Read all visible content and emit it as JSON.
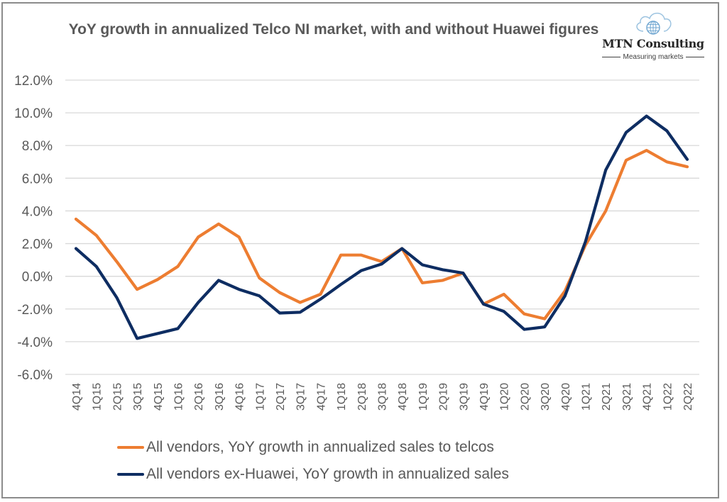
{
  "logo": {
    "name": "MTN Consulting",
    "tagline": "Measuring markets",
    "icon": "cloud-globe-icon"
  },
  "chart_data": {
    "type": "line",
    "title": "YoY growth in annualized Telco NI market, with and without Huawei figures",
    "xlabel": "",
    "ylabel": "",
    "ylim": [
      -6.0,
      12.0
    ],
    "yticks": [
      12.0,
      10.0,
      8.0,
      6.0,
      4.0,
      2.0,
      0.0,
      -2.0,
      -4.0,
      -6.0
    ],
    "ytick_labels": [
      "12.0%",
      "10.0%",
      "8.0%",
      "6.0%",
      "4.0%",
      "2.0%",
      "0.0%",
      "-2.0%",
      "-4.0%",
      "-6.0%"
    ],
    "grid": true,
    "legend_position": "bottom",
    "categories": [
      "4Q14",
      "1Q15",
      "2Q15",
      "3Q15",
      "4Q15",
      "1Q16",
      "2Q16",
      "3Q16",
      "4Q16",
      "1Q17",
      "2Q17",
      "3Q17",
      "4Q17",
      "1Q18",
      "2Q18",
      "3Q18",
      "4Q18",
      "1Q19",
      "2Q19",
      "3Q19",
      "4Q19",
      "1Q20",
      "2Q20",
      "3Q20",
      "4Q20",
      "1Q21",
      "2Q21",
      "3Q21",
      "4Q21",
      "1Q22",
      "2Q22"
    ],
    "series": [
      {
        "name": "All vendors, YoY growth in annualized sales to telcos",
        "color": "#ED7D31",
        "values": [
          3.5,
          2.5,
          0.9,
          -0.8,
          -0.2,
          0.6,
          2.4,
          3.2,
          2.4,
          -0.1,
          -1.0,
          -1.6,
          -1.1,
          1.3,
          1.3,
          0.9,
          1.7,
          -0.4,
          -0.25,
          0.2,
          -1.7,
          -1.1,
          -2.3,
          -2.6,
          -0.9,
          1.9,
          4.0,
          7.1,
          7.7,
          7.0,
          6.7
        ]
      },
      {
        "name": "All vendors ex-Huawei, YoY growth in annualized sales",
        "color": "#0E2D62",
        "values": [
          1.7,
          0.6,
          -1.3,
          -3.8,
          -3.5,
          -3.2,
          -1.6,
          -0.25,
          -0.8,
          -1.2,
          -2.25,
          -2.2,
          -1.4,
          -0.5,
          0.35,
          0.75,
          1.7,
          0.7,
          0.4,
          0.2,
          -1.7,
          -2.15,
          -3.25,
          -3.1,
          -1.2,
          2.1,
          6.5,
          8.8,
          9.8,
          8.9,
          7.15
        ]
      }
    ]
  }
}
